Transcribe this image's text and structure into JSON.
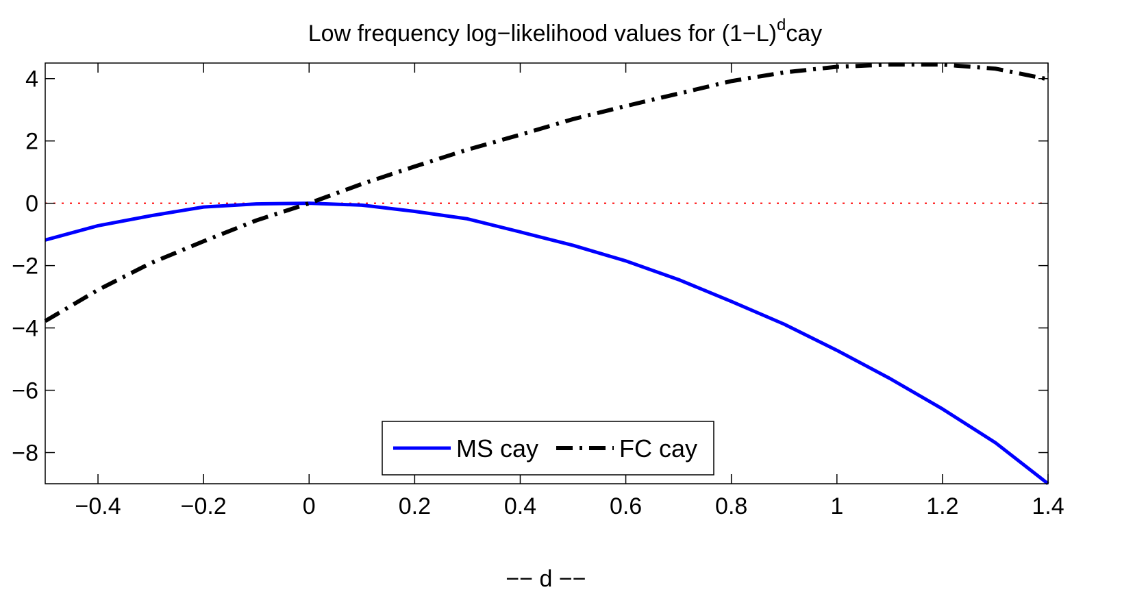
{
  "chart_data": {
    "type": "line",
    "title": "Low frequency log−likelihood values for (1−L)",
    "title_superscript": "d",
    "title_suffix": "cay",
    "xlabel": "−− d −−",
    "ylabel": "",
    "xlim": [
      -0.5,
      1.4
    ],
    "ylim": [
      -9,
      4.5
    ],
    "xticks": [
      -0.4,
      -0.2,
      0,
      0.2,
      0.4,
      0.6,
      0.8,
      1,
      1.2,
      1.4
    ],
    "xtick_labels": [
      "−0.4",
      "−0.2",
      "0",
      "0.2",
      "0.4",
      "0.6",
      "0.8",
      "1",
      "1.2",
      "1.4"
    ],
    "yticks": [
      4,
      2,
      0,
      -2,
      -4,
      -6,
      -8
    ],
    "ytick_labels": [
      "4",
      "2",
      "0",
      "−2",
      "−4",
      "−6",
      "−8"
    ],
    "grid": false,
    "legend": {
      "placement": "bottom-center",
      "orientation": "horizontal"
    },
    "x": [
      -0.5,
      -0.4,
      -0.3,
      -0.2,
      -0.1,
      0,
      0.1,
      0.2,
      0.3,
      0.4,
      0.5,
      0.6,
      0.7,
      0.8,
      0.9,
      1.0,
      1.1,
      1.2,
      1.3,
      1.4
    ],
    "series": [
      {
        "name": "MS cay",
        "color": "#0000ff",
        "style": "solid",
        "values": [
          -1.18,
          -0.72,
          -0.4,
          -0.12,
          -0.02,
          0,
          -0.06,
          -0.26,
          -0.5,
          -0.92,
          -1.35,
          -1.85,
          -2.45,
          -3.15,
          -3.88,
          -4.72,
          -5.62,
          -6.6,
          -7.68,
          -9.0
        ]
      },
      {
        "name": "FC cay",
        "color": "#000000",
        "style": "dashdot",
        "values": [
          -3.78,
          -2.78,
          -1.92,
          -1.22,
          -0.55,
          0,
          0.62,
          1.18,
          1.72,
          2.2,
          2.7,
          3.12,
          3.52,
          3.92,
          4.2,
          4.38,
          4.45,
          4.45,
          4.32,
          3.98
        ]
      }
    ],
    "reference_lines": [
      {
        "axis": "y",
        "value": 0,
        "color": "#ff0000",
        "style": "dotted"
      }
    ]
  }
}
